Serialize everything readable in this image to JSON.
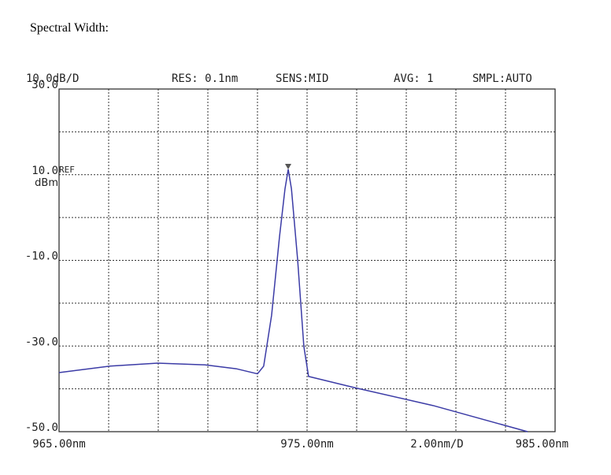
{
  "title": "Spectral Width:",
  "chart_data": {
    "type": "line",
    "header": [
      "10.0dB/D",
      "RES: 0.1nm",
      "SENS:MID",
      "AVG:   1",
      "SMPL:AUTO"
    ],
    "ref_label": "REF",
    "y_unit": "dBm",
    "x_scale_label": "2.00nm/D",
    "x": [
      965.0,
      967.06,
      968.97,
      970.87,
      972.14,
      973.0,
      973.25,
      973.57,
      973.89,
      974.11,
      974.24,
      974.37,
      974.62,
      974.87,
      975.06,
      976.9,
      980.08,
      983.89
    ],
    "series": [
      {
        "color": "#3b3ba6",
        "values": [
          -36.2,
          -34.7,
          -34.0,
          -34.4,
          -35.3,
          -36.5,
          -34.7,
          -22.8,
          -4.4,
          6.7,
          11.25,
          6.7,
          -9.9,
          -30.1,
          -37.1,
          -39.7,
          -43.9,
          -50.0
        ]
      }
    ],
    "xlim": [
      965,
      985
    ],
    "ylim": [
      -50,
      30
    ],
    "xticks": [
      {
        "value": 965,
        "label": "965.00nm"
      },
      {
        "value": 975,
        "label": "975.00nm"
      },
      {
        "value": 985,
        "label": "985.00nm"
      }
    ],
    "yticks": [
      {
        "value": 30,
        "label": "30.0"
      },
      {
        "value": 10,
        "label": "10.0"
      },
      {
        "value": -10,
        "label": "-10.0"
      },
      {
        "value": -30,
        "label": "-30.0"
      },
      {
        "value": -50,
        "label": "-50.0"
      }
    ],
    "xgrid": [
      967,
      969,
      971,
      973,
      977,
      979,
      981,
      983
    ],
    "ygrid": [
      20,
      0,
      -20,
      -40
    ],
    "grid": true
  }
}
